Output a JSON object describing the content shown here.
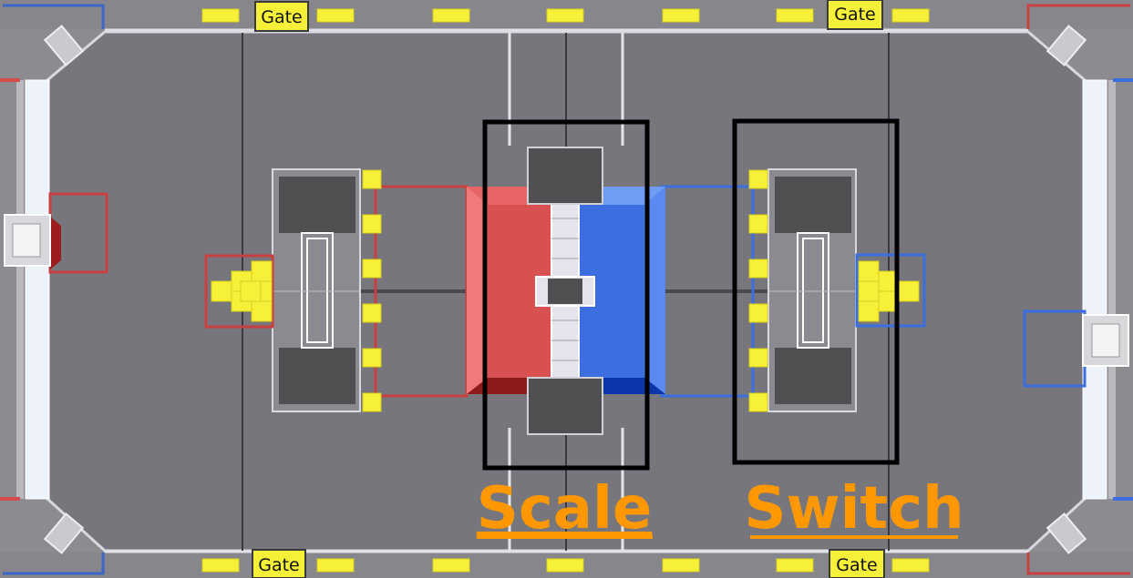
{
  "gates": {
    "top_left": "Gate",
    "top_right": "Gate",
    "bottom_left": "Gate",
    "bottom_right": "Gate"
  },
  "labels": {
    "scale": "Scale",
    "switch": "Switch"
  },
  "colors": {
    "field": "#76767c",
    "red_alliance": "#d9534f",
    "blue_alliance": "#3b6fe0",
    "power_cube": "#f7f038",
    "plate": "#505052",
    "label": "#ff9800",
    "highlight_box": "#000000"
  }
}
